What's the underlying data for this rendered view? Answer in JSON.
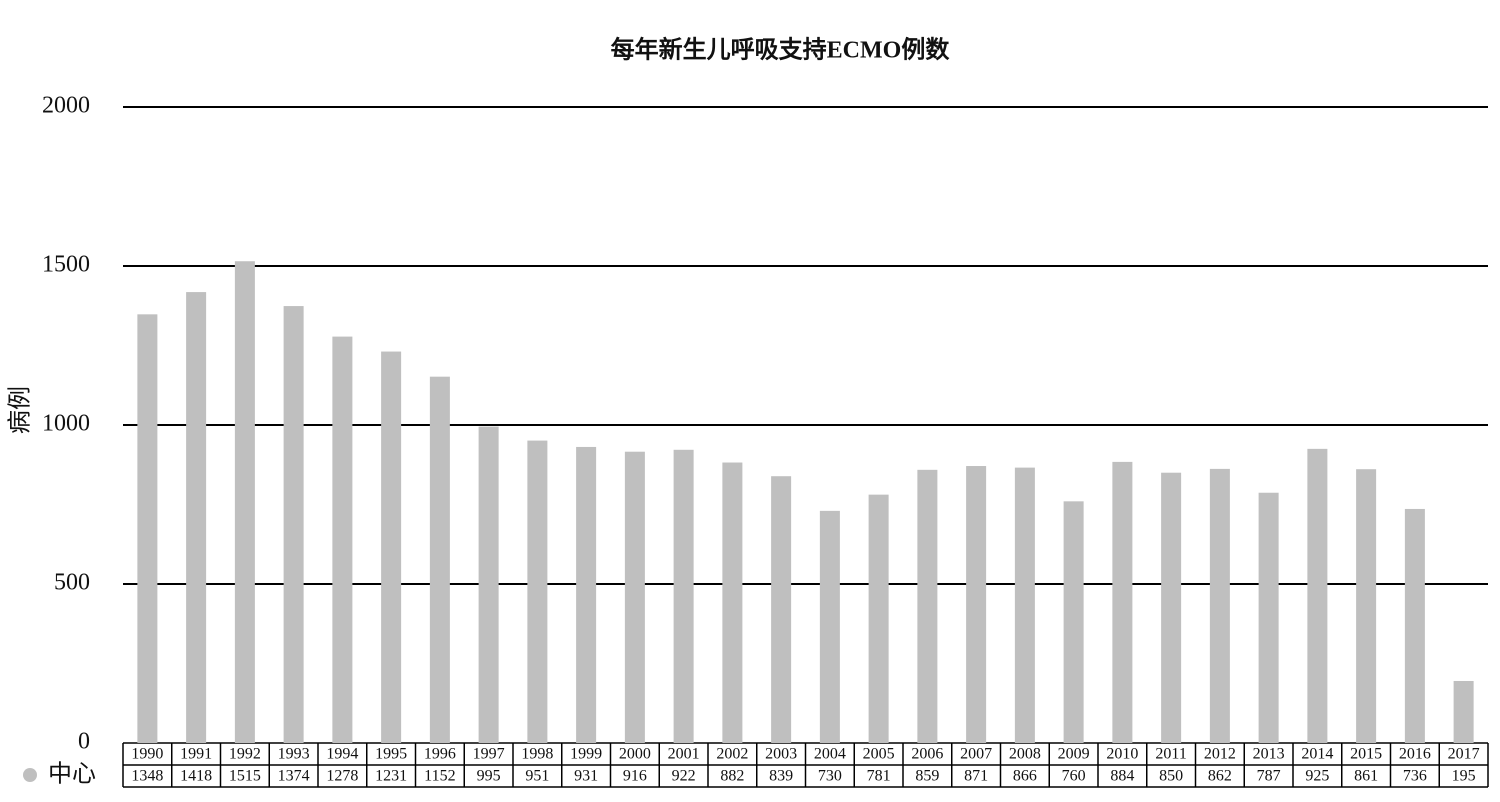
{
  "chart_data": {
    "type": "bar",
    "title": "每年新生儿呼吸支持ECMO例数",
    "y_label": "病例",
    "categories": [
      "1990",
      "1991",
      "1992",
      "1993",
      "1994",
      "1995",
      "1996",
      "1997",
      "1998",
      "1999",
      "2000",
      "2001",
      "2002",
      "2003",
      "2004",
      "2005",
      "2006",
      "2007",
      "2008",
      "2009",
      "2010",
      "2011",
      "2012",
      "2013",
      "2014",
      "2015",
      "2016",
      "2017"
    ],
    "series": [
      {
        "name": "中心",
        "color": "#bfbfbf",
        "values": [
          1348,
          1418,
          1515,
          1374,
          1278,
          1231,
          1152,
          995,
          951,
          931,
          916,
          922,
          882,
          839,
          730,
          781,
          859,
          871,
          866,
          760,
          884,
          850,
          862,
          787,
          925,
          861,
          736,
          195
        ]
      }
    ],
    "ylim": [
      0,
      2000
    ],
    "yticks": [
      0,
      500,
      1000,
      1500,
      2000
    ],
    "grid": true,
    "data_table": true
  }
}
